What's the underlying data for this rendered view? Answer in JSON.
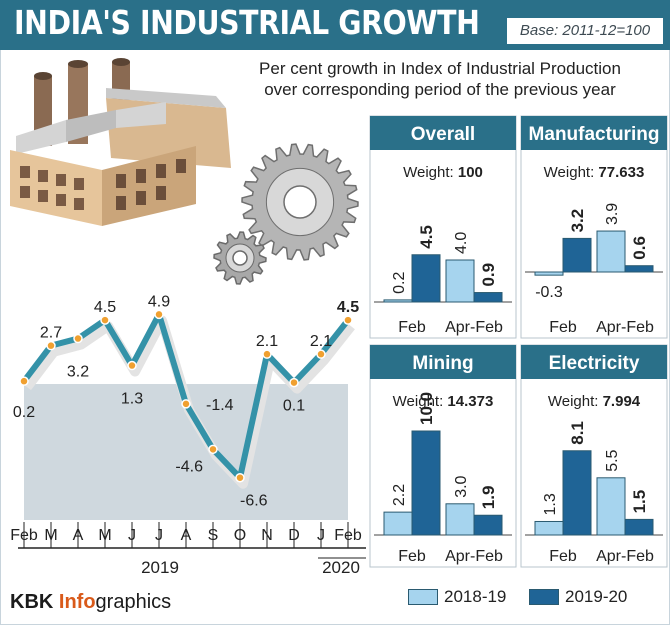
{
  "header": {
    "title": "INDIA'S INDUSTRIAL GROWTH",
    "base": "Base: 2011-12=100"
  },
  "subtitle_line1": "Per cent growth in Index of Industrial Production",
  "subtitle_line2": "over corresponding period of the previous year",
  "colors": {
    "header_bg": "#2a7089",
    "panel_header_bg": "#2a7089",
    "series_2018_19": "#a6d4ee",
    "series_2019_20": "#1f6496",
    "line": "#3492a8",
    "marker": "#f0a030",
    "area": "#cdd6dc"
  },
  "chart_data": [
    {
      "type": "line",
      "x": [
        "Feb",
        "M",
        "A",
        "M",
        "J",
        "J",
        "A",
        "S",
        "O",
        "N",
        "D",
        "J",
        "Feb"
      ],
      "values": [
        0.2,
        2.7,
        3.2,
        4.5,
        1.3,
        4.9,
        -1.4,
        -4.6,
        -6.6,
        2.1,
        0.1,
        2.1,
        4.5
      ],
      "labels": [
        "0.2",
        "2.7",
        "3.2",
        "4.5",
        "1.3",
        "4.9",
        "-1.4",
        "-4.6",
        "-6.6",
        "2.1",
        "0.1",
        "2.1",
        "4.5"
      ],
      "year_labels": [
        "2019",
        "2020"
      ],
      "ylim": [
        -7.5,
        6
      ],
      "grid": false
    },
    {
      "type": "bar",
      "title": "Overall",
      "weight_label": "Weight: ",
      "weight": "100",
      "categories": [
        "Feb",
        "Apr-Feb"
      ],
      "series": [
        {
          "name": "2018-19",
          "values": [
            0.2,
            4.0
          ],
          "labels": [
            "0.2",
            "4.0"
          ]
        },
        {
          "name": "2019-20",
          "values": [
            4.5,
            0.9
          ],
          "labels": [
            "4.5",
            "0.9"
          ]
        }
      ]
    },
    {
      "type": "bar",
      "title": "Manufacturing",
      "weight_label": "Weight: ",
      "weight": "77.633",
      "categories": [
        "Feb",
        "Apr-Feb"
      ],
      "series": [
        {
          "name": "2018-19",
          "values": [
            -0.3,
            3.9
          ],
          "labels": [
            "-0.3",
            "3.9"
          ]
        },
        {
          "name": "2019-20",
          "values": [
            3.2,
            0.6
          ],
          "labels": [
            "3.2",
            "0.6"
          ]
        }
      ]
    },
    {
      "type": "bar",
      "title": "Mining",
      "weight_label": "Weight: ",
      "weight": "14.373",
      "categories": [
        "Feb",
        "Apr-Feb"
      ],
      "series": [
        {
          "name": "2018-19",
          "values": [
            2.2,
            3.0
          ],
          "labels": [
            "2.2",
            "3.0"
          ]
        },
        {
          "name": "2019-20",
          "values": [
            10.0,
            1.9
          ],
          "labels": [
            "10.0",
            "1.9"
          ]
        }
      ]
    },
    {
      "type": "bar",
      "title": "Electricity",
      "weight_label": "Weight: ",
      "weight": "7.994",
      "categories": [
        "Feb",
        "Apr-Feb"
      ],
      "series": [
        {
          "name": "2018-19",
          "values": [
            1.3,
            5.5
          ],
          "labels": [
            "1.3",
            "5.5"
          ]
        },
        {
          "name": "2019-20",
          "values": [
            8.1,
            1.5
          ],
          "labels": [
            "8.1",
            "1.5"
          ]
        }
      ]
    }
  ],
  "legend": [
    {
      "label": "2018-19"
    },
    {
      "label": "2019-20"
    }
  ],
  "footer": {
    "brand_bold": "KBK ",
    "brand_accent": "Info",
    "brand_rest": "graphics"
  }
}
